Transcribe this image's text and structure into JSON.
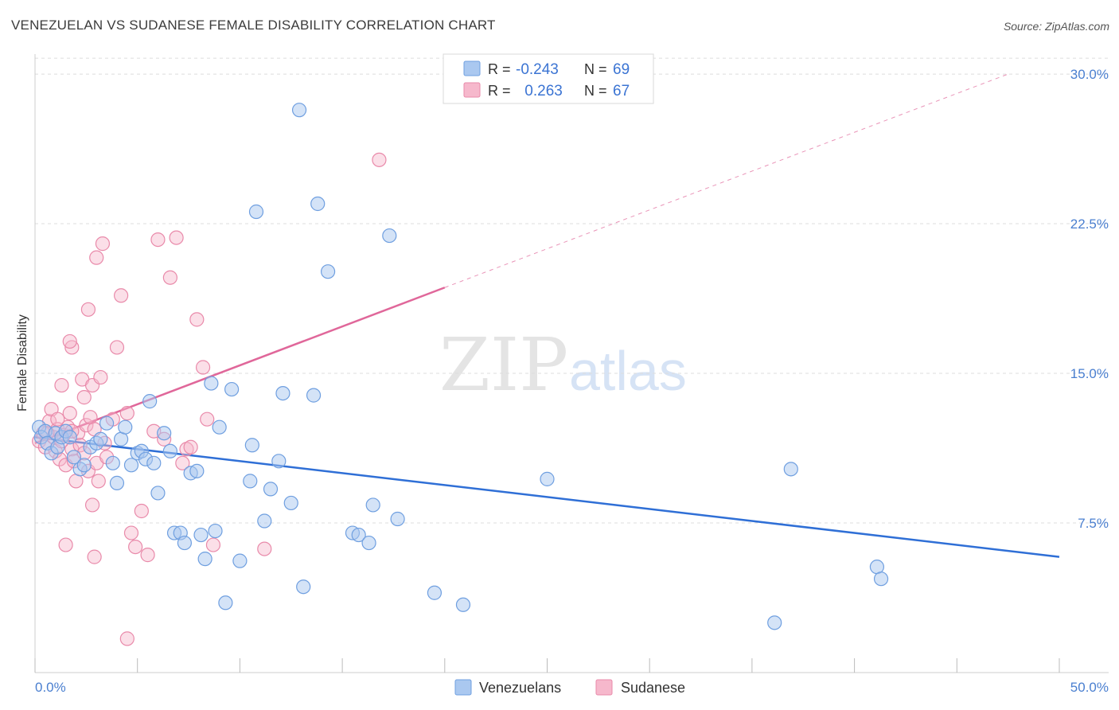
{
  "header": {
    "title": "VENEZUELAN VS SUDANESE FEMALE DISABILITY CORRELATION CHART",
    "source": "Source: ZipAtlas.com"
  },
  "watermark": {
    "part1": "ZIP",
    "part2": "atlas"
  },
  "legend": {
    "rows": [
      {
        "r_label": "R = ",
        "r_value": "-0.243",
        "n_label": "N = ",
        "n_value": "69",
        "color": "#aac8f0"
      },
      {
        "r_label": "R = ",
        "r_value": " 0.263",
        "n_label": "N = ",
        "n_value": "67",
        "color": "#f6b8cc"
      }
    ]
  },
  "bottom_legend": [
    "Venezuelans",
    "Sudanese"
  ],
  "colors": {
    "blue_fill": "#aac8f0",
    "blue_stroke": "#6f9fe0",
    "blue_line": "#2f6fd6",
    "pink_fill": "#f6b8cc",
    "pink_stroke": "#e98aaa",
    "pink_line": "#e0679a",
    "tick_text": "#4a7fd0",
    "grid": "#dddddd"
  },
  "chart_data": {
    "type": "scatter",
    "ylabel": "Female Disability",
    "x_tick_labels": [
      "0.0%",
      "50.0%"
    ],
    "y_tick_labels": [
      "7.5%",
      "15.0%",
      "22.5%",
      "30.0%"
    ],
    "xlim": [
      0,
      50
    ],
    "ylim": [
      0,
      31
    ],
    "y_ticks": [
      7.5,
      15.0,
      22.5,
      30.0
    ],
    "grid": "horizontal dashed",
    "legend_position": "top-center",
    "series": [
      {
        "name": "Venezuelans",
        "points": [
          [
            0.2,
            12.3
          ],
          [
            0.3,
            11.8
          ],
          [
            0.5,
            12.1
          ],
          [
            0.6,
            11.5
          ],
          [
            0.8,
            11.0
          ],
          [
            1.0,
            12.0
          ],
          [
            1.1,
            11.3
          ],
          [
            1.3,
            11.8
          ],
          [
            1.5,
            12.1
          ],
          [
            1.7,
            11.8
          ],
          [
            1.9,
            10.8
          ],
          [
            2.2,
            10.2
          ],
          [
            2.4,
            10.4
          ],
          [
            2.7,
            11.3
          ],
          [
            3.0,
            11.5
          ],
          [
            3.2,
            11.7
          ],
          [
            3.5,
            12.5
          ],
          [
            3.8,
            10.5
          ],
          [
            4.0,
            9.5
          ],
          [
            4.2,
            11.7
          ],
          [
            4.4,
            12.3
          ],
          [
            4.7,
            10.4
          ],
          [
            5.0,
            11.0
          ],
          [
            5.2,
            11.1
          ],
          [
            5.4,
            10.7
          ],
          [
            5.6,
            13.6
          ],
          [
            5.8,
            10.5
          ],
          [
            6.0,
            9.0
          ],
          [
            6.3,
            12.0
          ],
          [
            6.6,
            11.1
          ],
          [
            6.8,
            7.0
          ],
          [
            7.1,
            7.0
          ],
          [
            7.3,
            6.5
          ],
          [
            7.6,
            10.0
          ],
          [
            7.9,
            10.1
          ],
          [
            8.1,
            6.9
          ],
          [
            8.3,
            5.7
          ],
          [
            8.6,
            14.5
          ],
          [
            8.8,
            7.1
          ],
          [
            9.0,
            12.3
          ],
          [
            9.3,
            3.5
          ],
          [
            9.6,
            14.2
          ],
          [
            10.0,
            5.6
          ],
          [
            10.5,
            9.6
          ],
          [
            10.6,
            11.4
          ],
          [
            10.8,
            23.1
          ],
          [
            11.2,
            7.6
          ],
          [
            11.5,
            9.2
          ],
          [
            11.9,
            10.6
          ],
          [
            12.1,
            14.0
          ],
          [
            12.5,
            8.5
          ],
          [
            12.9,
            28.2
          ],
          [
            13.1,
            4.3
          ],
          [
            13.6,
            13.9
          ],
          [
            13.8,
            23.5
          ],
          [
            14.3,
            20.1
          ],
          [
            15.5,
            7.0
          ],
          [
            15.8,
            6.9
          ],
          [
            16.3,
            6.5
          ],
          [
            16.5,
            8.4
          ],
          [
            17.3,
            21.9
          ],
          [
            17.7,
            7.7
          ],
          [
            19.5,
            4.0
          ],
          [
            20.9,
            3.4
          ],
          [
            25.0,
            9.7
          ],
          [
            36.1,
            2.5
          ],
          [
            36.9,
            10.2
          ],
          [
            41.1,
            5.3
          ],
          [
            41.3,
            4.7
          ]
        ],
        "trend": {
          "x": [
            0,
            50
          ],
          "y": [
            11.8,
            5.8
          ]
        }
      },
      {
        "name": "Sudanese",
        "points": [
          [
            0.2,
            11.6
          ],
          [
            0.4,
            12.0
          ],
          [
            0.5,
            11.3
          ],
          [
            0.7,
            12.6
          ],
          [
            0.8,
            13.2
          ],
          [
            0.9,
            11.8
          ],
          [
            1.0,
            11.1
          ],
          [
            1.1,
            12.2
          ],
          [
            1.2,
            10.7
          ],
          [
            1.3,
            14.4
          ],
          [
            1.4,
            11.9
          ],
          [
            1.5,
            10.4
          ],
          [
            1.6,
            12.3
          ],
          [
            1.7,
            13.0
          ],
          [
            1.8,
            11.2
          ],
          [
            1.9,
            10.6
          ],
          [
            2.0,
            9.6
          ],
          [
            2.1,
            12.0
          ],
          [
            2.2,
            11.4
          ],
          [
            2.3,
            14.7
          ],
          [
            2.4,
            13.8
          ],
          [
            2.5,
            12.4
          ],
          [
            2.6,
            10.1
          ],
          [
            2.7,
            12.8
          ],
          [
            2.8,
            14.4
          ],
          [
            2.9,
            12.2
          ],
          [
            3.0,
            10.5
          ],
          [
            3.1,
            9.6
          ],
          [
            3.2,
            14.8
          ],
          [
            3.4,
            11.5
          ],
          [
            3.5,
            10.8
          ],
          [
            3.8,
            12.7
          ],
          [
            4.0,
            16.3
          ],
          [
            4.2,
            18.9
          ],
          [
            4.5,
            13.0
          ],
          [
            4.7,
            7.0
          ],
          [
            4.9,
            6.3
          ],
          [
            5.2,
            8.1
          ],
          [
            5.5,
            5.9
          ],
          [
            5.8,
            12.1
          ],
          [
            6.0,
            21.7
          ],
          [
            6.3,
            11.7
          ],
          [
            6.6,
            19.8
          ],
          [
            6.9,
            21.8
          ],
          [
            7.2,
            10.5
          ],
          [
            7.4,
            11.2
          ],
          [
            7.6,
            11.3
          ],
          [
            7.9,
            17.7
          ],
          [
            8.2,
            15.3
          ],
          [
            8.4,
            12.7
          ],
          [
            8.7,
            6.4
          ],
          [
            3.0,
            20.8
          ],
          [
            3.3,
            21.5
          ],
          [
            1.8,
            16.3
          ],
          [
            1.7,
            16.6
          ],
          [
            2.6,
            18.2
          ],
          [
            4.5,
            1.7
          ],
          [
            1.5,
            6.4
          ],
          [
            2.9,
            5.8
          ],
          [
            11.2,
            6.2
          ],
          [
            16.8,
            25.7
          ],
          [
            2.8,
            8.4
          ],
          [
            1.1,
            12.7
          ],
          [
            0.6,
            12.0
          ],
          [
            1.3,
            11.6
          ],
          [
            2.4,
            11.0
          ],
          [
            1.8,
            12.1
          ]
        ],
        "trend": {
          "x": [
            0,
            20
          ],
          "y": [
            11.5,
            19.3
          ]
        },
        "trend_extension": {
          "x": [
            20,
            47.5
          ],
          "y": [
            19.3,
            30.0
          ]
        }
      }
    ]
  }
}
